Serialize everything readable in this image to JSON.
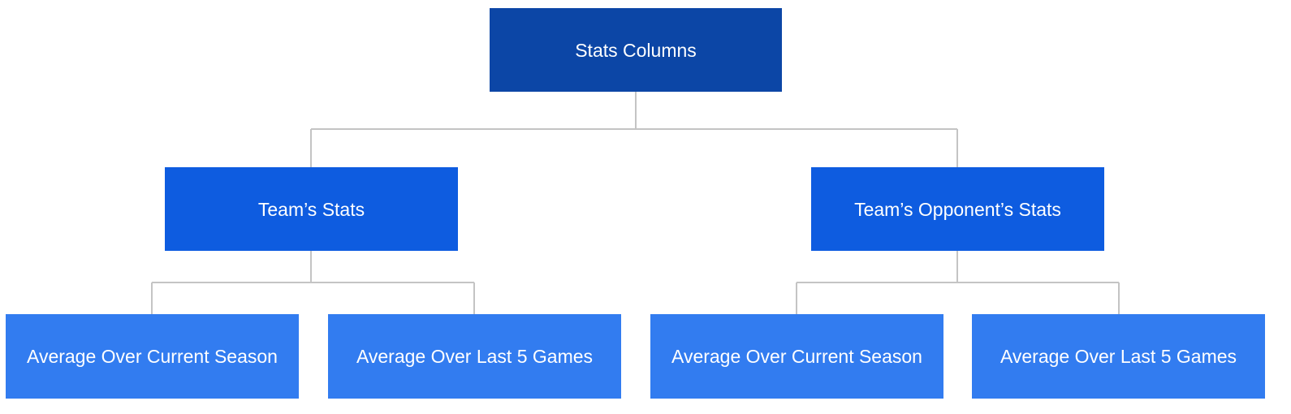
{
  "diagram": {
    "root": {
      "label": "Stats Columns"
    },
    "children": [
      {
        "label": "Team’s Stats",
        "children": [
          {
            "label": "Average Over Current Season"
          },
          {
            "label": "Average Over Last 5 Games"
          }
        ]
      },
      {
        "label": "Team’s Opponent’s Stats",
        "children": [
          {
            "label": "Average Over Current Season"
          },
          {
            "label": "Average Over Last 5 Games"
          }
        ]
      }
    ]
  },
  "colors": {
    "level_0": "#0c46a6",
    "level_1": "#0e5ce0",
    "level_2": "#327cf0",
    "connector": "#c4c4c4",
    "text": "#ffffff"
  }
}
